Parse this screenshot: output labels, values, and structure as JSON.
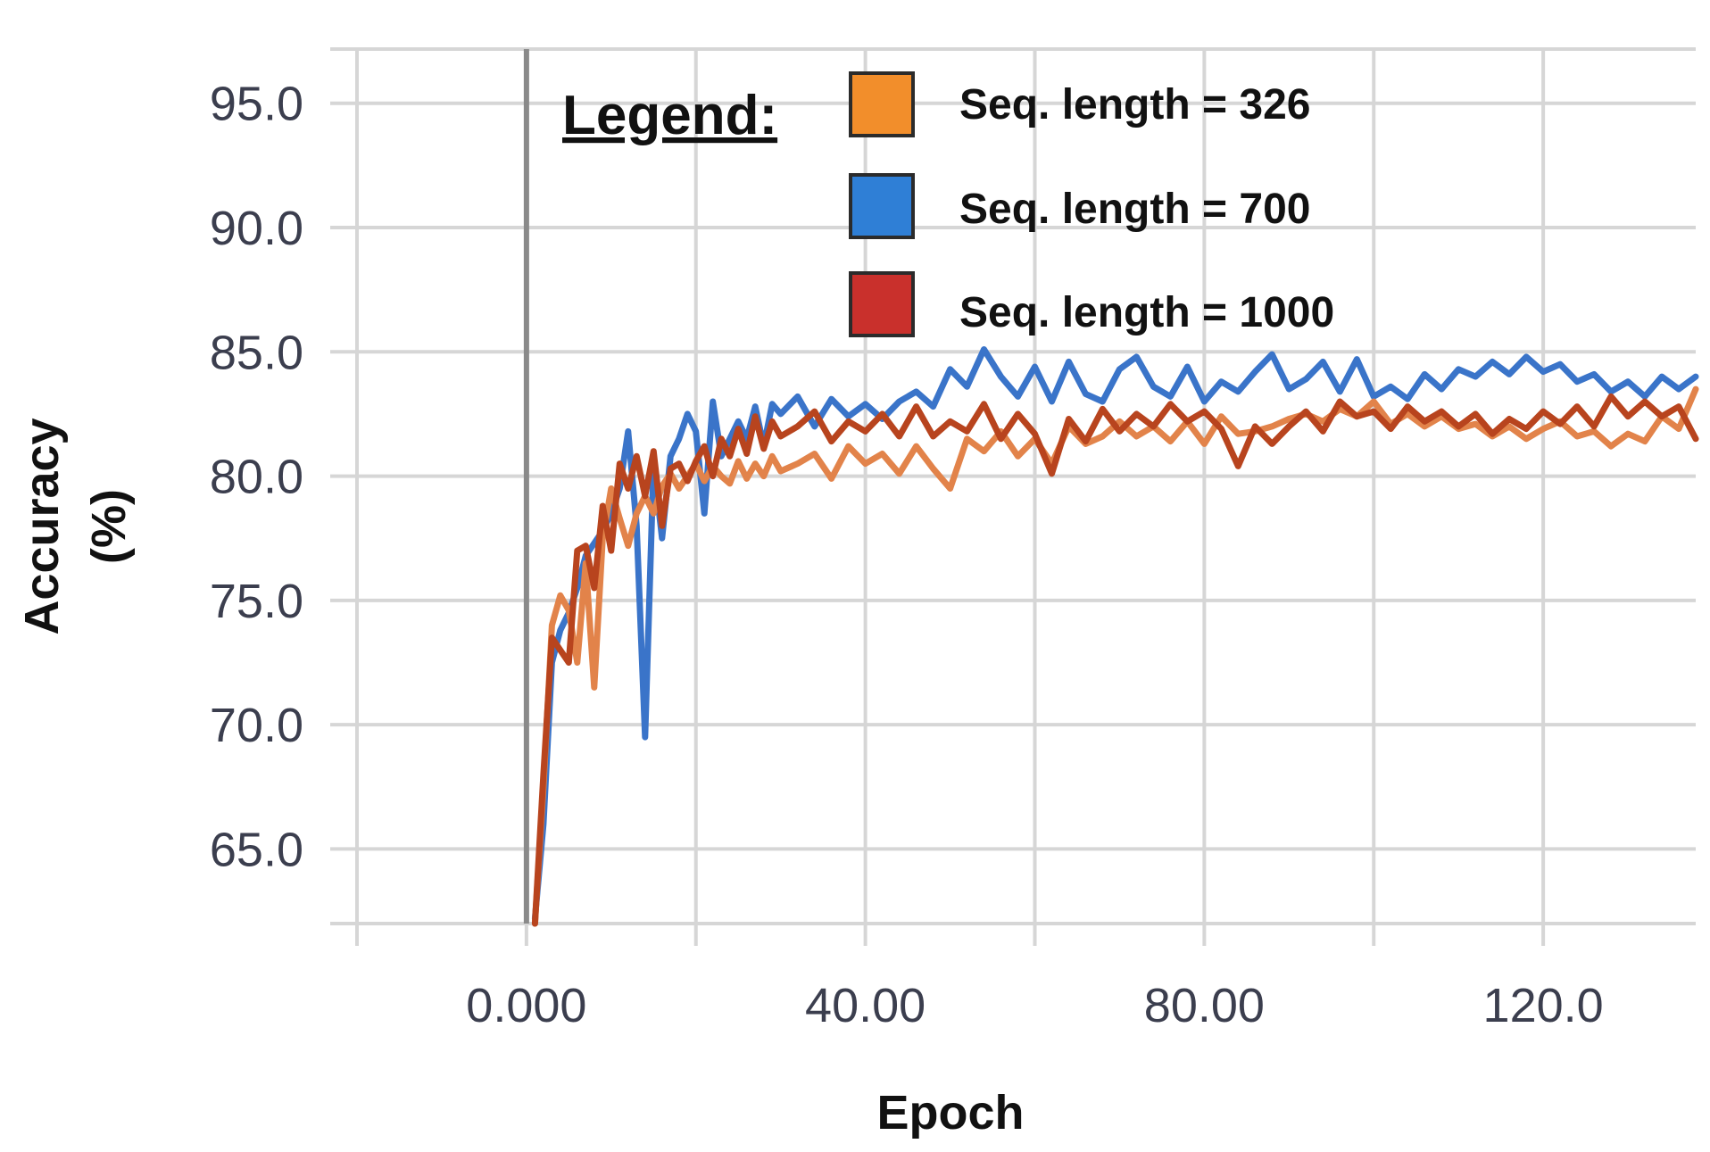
{
  "chart_data": {
    "type": "line",
    "title": "",
    "xlabel": "Epoch",
    "ylabel": "Accuracy",
    "ylabel_unit": "(%)",
    "xlim": [
      -20,
      138
    ],
    "ylim": [
      62,
      97
    ],
    "x_ticks": [
      0,
      40,
      80,
      120
    ],
    "x_tick_labels": [
      "0.000",
      "40.00",
      "80.00",
      "120.0"
    ],
    "y_ticks": [
      65,
      70,
      75,
      80,
      85,
      90,
      95
    ],
    "y_tick_labels": [
      "65.0",
      "70.0",
      "75.0",
      "80.0",
      "85.0",
      "90.0",
      "95.0"
    ],
    "grid": true,
    "legend": {
      "title": "Legend:",
      "placement": "top-center",
      "entries": [
        {
          "label": "Seq. length = 326",
          "color": "#f28e2b"
        },
        {
          "label": "Seq. length = 700",
          "color": "#2f7fd6"
        },
        {
          "label": "Seq. length = 1000",
          "color": "#c9302c"
        }
      ]
    },
    "series": [
      {
        "name": "Seq. length = 700",
        "color": "#3a74c9",
        "x": [
          1,
          2,
          3,
          4,
          5,
          6,
          7,
          8,
          9,
          10,
          11,
          12,
          13,
          14,
          15,
          16,
          17,
          18,
          19,
          20,
          21,
          22,
          23,
          24,
          25,
          26,
          27,
          28,
          29,
          30,
          32,
          34,
          36,
          38,
          40,
          42,
          44,
          46,
          48,
          50,
          52,
          54,
          56,
          58,
          60,
          62,
          64,
          66,
          68,
          70,
          72,
          74,
          76,
          78,
          80,
          82,
          84,
          86,
          88,
          90,
          92,
          94,
          96,
          98,
          100,
          102,
          104,
          106,
          108,
          110,
          112,
          114,
          116,
          118,
          120,
          122,
          124,
          126,
          128,
          130,
          132,
          134,
          136,
          138
        ],
        "y": [
          62.2,
          66,
          72.5,
          73.8,
          74.5,
          75.5,
          76.8,
          77.3,
          77.8,
          78.5,
          79.5,
          81.8,
          78,
          69.5,
          80.5,
          77.5,
          80.8,
          81.5,
          82.5,
          81.8,
          78.5,
          83,
          80.8,
          81.5,
          82.2,
          81.5,
          82.8,
          81.2,
          82.9,
          82.5,
          83.2,
          82.0,
          83.1,
          82.4,
          82.9,
          82.3,
          83.0,
          83.4,
          82.8,
          84.3,
          83.6,
          85.1,
          84.0,
          83.2,
          84.4,
          83.0,
          84.6,
          83.3,
          83.0,
          84.3,
          84.8,
          83.6,
          83.2,
          84.4,
          83.0,
          83.8,
          83.4,
          84.2,
          84.9,
          83.5,
          83.9,
          84.6,
          83.4,
          84.7,
          83.2,
          83.6,
          83.1,
          84.1,
          83.5,
          84.3,
          84.0,
          84.6,
          84.1,
          84.8,
          84.2,
          84.5,
          83.8,
          84.1,
          83.4,
          83.8,
          83.2,
          84.0,
          83.5,
          84.0
        ]
      },
      {
        "name": "Seq. length = 326",
        "color": "#e2834a",
        "x": [
          1,
          2,
          3,
          4,
          5,
          6,
          7,
          8,
          9,
          10,
          11,
          12,
          13,
          14,
          15,
          16,
          17,
          18,
          19,
          20,
          21,
          22,
          23,
          24,
          25,
          26,
          27,
          28,
          29,
          30,
          32,
          34,
          36,
          38,
          40,
          42,
          44,
          46,
          48,
          50,
          52,
          54,
          56,
          58,
          60,
          62,
          64,
          66,
          68,
          70,
          72,
          74,
          76,
          78,
          80,
          82,
          84,
          86,
          88,
          90,
          92,
          94,
          96,
          98,
          100,
          102,
          104,
          106,
          108,
          110,
          112,
          114,
          116,
          118,
          120,
          122,
          124,
          126,
          128,
          130,
          132,
          134,
          136,
          138
        ],
        "y": [
          62.0,
          67.5,
          74.0,
          75.2,
          74.6,
          72.5,
          76.5,
          71.5,
          77.5,
          79.5,
          78.3,
          77.2,
          78.5,
          79.2,
          78.5,
          79.6,
          80.1,
          79.5,
          80.0,
          80.5,
          79.8,
          80.4,
          80.0,
          79.7,
          80.6,
          79.9,
          80.5,
          80.0,
          80.8,
          80.2,
          80.5,
          80.9,
          79.9,
          81.2,
          80.5,
          80.9,
          80.1,
          81.2,
          80.3,
          79.5,
          81.5,
          81.0,
          81.8,
          80.8,
          81.5,
          80.5,
          82.0,
          81.3,
          81.6,
          82.2,
          81.6,
          82.0,
          81.4,
          82.2,
          81.3,
          82.4,
          81.7,
          81.8,
          82.0,
          82.3,
          82.5,
          82.2,
          82.7,
          82.4,
          83.0,
          82.1,
          82.5,
          82.0,
          82.4,
          81.9,
          82.1,
          81.6,
          82.0,
          81.5,
          81.9,
          82.2,
          81.6,
          81.8,
          81.2,
          81.7,
          81.4,
          82.4,
          81.9,
          83.5
        ]
      },
      {
        "name": "Seq. length = 1000",
        "color": "#b8441e",
        "x": [
          1,
          2,
          3,
          4,
          5,
          6,
          7,
          8,
          9,
          10,
          11,
          12,
          13,
          14,
          15,
          16,
          17,
          18,
          19,
          20,
          21,
          22,
          23,
          24,
          25,
          26,
          27,
          28,
          29,
          30,
          32,
          34,
          36,
          38,
          40,
          42,
          44,
          46,
          48,
          50,
          52,
          54,
          56,
          58,
          60,
          62,
          64,
          66,
          68,
          70,
          72,
          74,
          76,
          78,
          80,
          82,
          84,
          86,
          88,
          90,
          92,
          94,
          96,
          98,
          100,
          102,
          104,
          106,
          108,
          110,
          112,
          114,
          116,
          118,
          120,
          122,
          124,
          126,
          128,
          130,
          132,
          134,
          136,
          138
        ],
        "y": [
          62.0,
          68.0,
          73.5,
          73.0,
          72.5,
          77.0,
          77.2,
          75.5,
          78.8,
          77.0,
          80.5,
          79.5,
          80.8,
          79.2,
          81.0,
          78.0,
          80.3,
          80.5,
          79.8,
          80.6,
          81.2,
          80.0,
          81.5,
          80.8,
          81.9,
          80.9,
          82.4,
          81.1,
          82.2,
          81.6,
          82.0,
          82.6,
          81.4,
          82.2,
          81.8,
          82.5,
          81.6,
          82.8,
          81.6,
          82.2,
          81.8,
          82.9,
          81.5,
          82.5,
          81.7,
          80.1,
          82.3,
          81.4,
          82.7,
          81.8,
          82.5,
          82.0,
          82.9,
          82.2,
          82.6,
          81.9,
          80.4,
          82.0,
          81.3,
          82.0,
          82.6,
          81.8,
          83.0,
          82.4,
          82.6,
          81.9,
          82.8,
          82.2,
          82.6,
          82.0,
          82.5,
          81.7,
          82.3,
          81.9,
          82.6,
          82.1,
          82.8,
          82.0,
          83.2,
          82.4,
          83.0,
          82.4,
          82.8,
          81.5
        ]
      }
    ]
  }
}
